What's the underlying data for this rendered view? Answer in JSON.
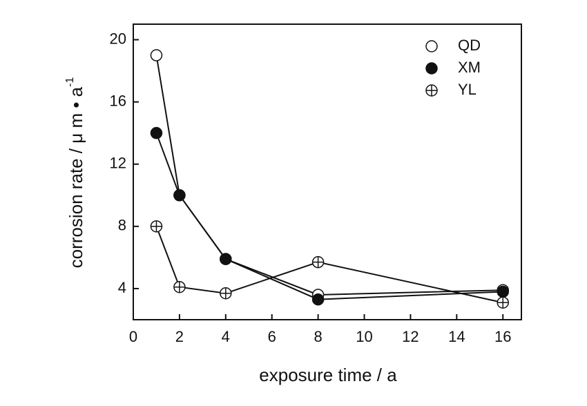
{
  "chart_data": {
    "type": "line",
    "xlabel": "exposure time / a",
    "ylabel": "corrosion rate / μ m • a",
    "ylabel_superscript": "-1",
    "x": [
      1,
      2,
      4,
      8,
      16
    ],
    "series": [
      {
        "name": "QD",
        "color": "#111111",
        "marker": "open-circle",
        "values": [
          19,
          10,
          5.9,
          3.6,
          3.9
        ]
      },
      {
        "name": "XM",
        "color": "#111111",
        "marker": "filled-circle",
        "values": [
          14,
          10,
          5.9,
          3.3,
          3.8
        ]
      },
      {
        "name": "YL",
        "color": "#111111",
        "marker": "circle-plus",
        "values": [
          8,
          4.1,
          3.7,
          5.7,
          3.1
        ]
      }
    ],
    "xlim": [
      0,
      16.8
    ],
    "xticks": [
      0,
      2,
      4,
      6,
      8,
      10,
      12,
      14,
      16
    ],
    "ylim": [
      2,
      21
    ],
    "yticks": [
      4,
      8,
      12,
      16,
      20
    ],
    "legend": "upper right",
    "grid": false
  }
}
